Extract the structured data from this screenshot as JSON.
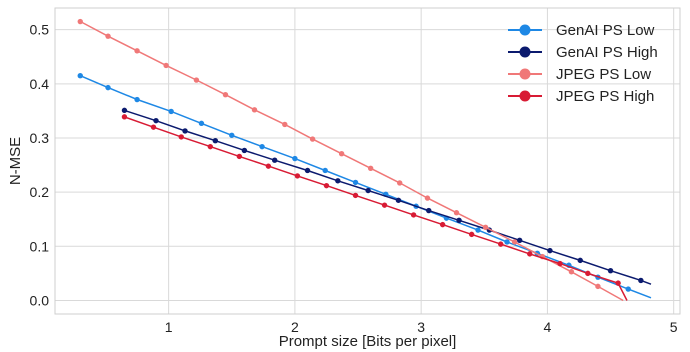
{
  "chart_data": {
    "type": "line",
    "title": "",
    "xlabel": "Prompt size [Bits per pixel]",
    "ylabel": "N-MSE",
    "xlim": [
      0.1,
      5.05
    ],
    "ylim": [
      -0.025,
      0.54
    ],
    "xticks": [
      1,
      2,
      3,
      4,
      5
    ],
    "yticks": [
      0.0,
      0.1,
      0.2,
      0.3,
      0.4,
      0.5
    ],
    "grid": true,
    "legend_position": "top-right",
    "series": [
      {
        "name": "GenAI PS Low",
        "color": "#1e88e5",
        "x": [
          0.3,
          0.52,
          0.75,
          1.02,
          1.26,
          1.5,
          1.74,
          2.0,
          2.24,
          2.48,
          2.72,
          2.96,
          3.2,
          3.45,
          3.68,
          3.92,
          4.17,
          4.4,
          4.64
        ],
        "y": [
          0.415,
          0.393,
          0.371,
          0.349,
          0.327,
          0.305,
          0.284,
          0.262,
          0.24,
          0.218,
          0.196,
          0.174,
          0.152,
          0.13,
          0.108,
          0.087,
          0.065,
          0.043,
          0.021
        ],
        "line_end": [
          4.82,
          0.005
        ]
      },
      {
        "name": "GenAI PS High",
        "color": "#0b1a6e",
        "x": [
          0.65,
          0.9,
          1.13,
          1.37,
          1.6,
          1.84,
          2.1,
          2.34,
          2.58,
          2.82,
          3.06,
          3.3,
          3.54,
          3.78,
          4.02,
          4.26,
          4.5,
          4.74
        ],
        "y": [
          0.351,
          0.332,
          0.313,
          0.295,
          0.277,
          0.259,
          0.24,
          0.221,
          0.203,
          0.185,
          0.166,
          0.148,
          0.13,
          0.111,
          0.092,
          0.074,
          0.055,
          0.037
        ],
        "line_end": [
          4.82,
          0.03
        ]
      },
      {
        "name": "JPEG PS Low",
        "color": "#f07878",
        "x": [
          0.3,
          0.52,
          0.75,
          0.98,
          1.22,
          1.45,
          1.68,
          1.92,
          2.14,
          2.37,
          2.6,
          2.83,
          3.05,
          3.28,
          3.51,
          3.74,
          3.96,
          4.19,
          4.4
        ],
        "y": [
          0.515,
          0.488,
          0.461,
          0.434,
          0.407,
          0.38,
          0.352,
          0.325,
          0.298,
          0.271,
          0.244,
          0.217,
          0.189,
          0.162,
          0.135,
          0.108,
          0.081,
          0.053,
          0.026
        ],
        "line_end": [
          4.6,
          0.0
        ]
      },
      {
        "name": "JPEG PS High",
        "color": "#d81b34",
        "x": [
          0.65,
          0.88,
          1.1,
          1.33,
          1.56,
          1.79,
          2.02,
          2.25,
          2.48,
          2.71,
          2.94,
          3.17,
          3.4,
          3.63,
          3.86,
          4.1,
          4.32,
          4.56
        ],
        "y": [
          0.339,
          0.32,
          0.302,
          0.284,
          0.266,
          0.248,
          0.23,
          0.212,
          0.194,
          0.176,
          0.158,
          0.14,
          0.122,
          0.104,
          0.086,
          0.068,
          0.05,
          0.032
        ],
        "line_end": [
          4.63,
          0.0
        ]
      }
    ]
  }
}
